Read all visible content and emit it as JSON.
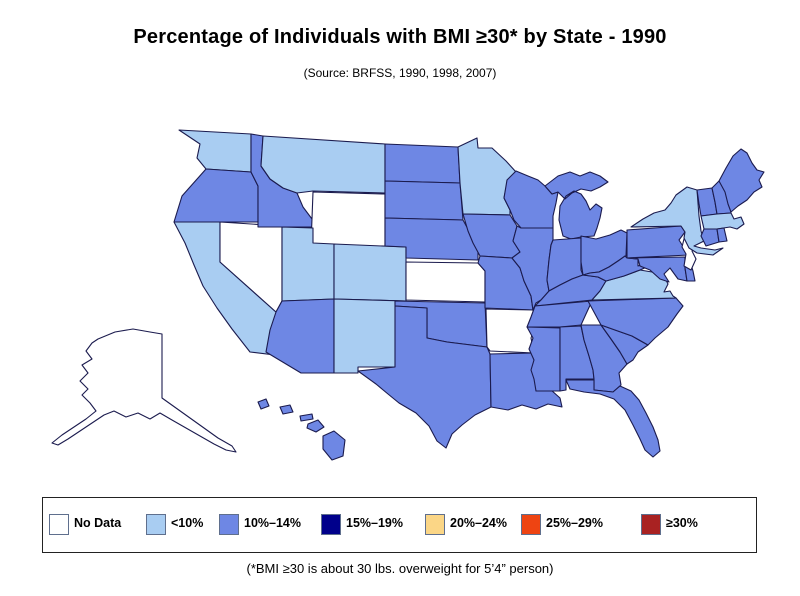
{
  "header": {
    "title": "Percentage of Individuals with BMI ≥30* by State - 1990",
    "subtitle": "(Source: BRFSS, 1990, 1998, 2007)"
  },
  "footnote": "(*BMI ≥30 is about 30 lbs. overweight for 5’4” person)",
  "legend": {
    "items": [
      {
        "label": "No Data",
        "color": "#ffffff"
      },
      {
        "label": "<10%",
        "color": "#a9cdf2"
      },
      {
        "label": "10%–14%",
        "color": "#6e87e4"
      },
      {
        "label": "15%–19%",
        "color": "#00008b"
      },
      {
        "label": "20%–24%",
        "color": "#fbd686"
      },
      {
        "label": "25%–29%",
        "color": "#ee4412"
      },
      {
        "label": "≥30%",
        "color": "#a92222"
      }
    ]
  },
  "chart_data": {
    "type": "choropleth-map",
    "title": "Percentage of Individuals with BMI ≥30* by State - 1990",
    "region": "United States",
    "year": 1990,
    "unit": "percent of individuals with BMI ≥30",
    "categories": [
      "No Data",
      "<10%",
      "10%–14%",
      "15%–19%",
      "20%–24%",
      "25%–29%",
      "≥30%"
    ],
    "states": {
      "WA": "<10%",
      "OR": "10%–14%",
      "CA": "<10%",
      "NV": "No Data",
      "ID": "10%–14%",
      "MT": "<10%",
      "WY": "No Data",
      "UT": "<10%",
      "CO": "<10%",
      "AZ": "10%–14%",
      "NM": "<10%",
      "ND": "10%–14%",
      "SD": "10%–14%",
      "NE": "10%–14%",
      "KS": "No Data",
      "OK": "10%–14%",
      "TX": "10%–14%",
      "MN": "<10%",
      "IA": "10%–14%",
      "MO": "10%–14%",
      "AR": "No Data",
      "LA": "10%–14%",
      "WI": "10%–14%",
      "IL": "10%–14%",
      "MS": "10%–14%",
      "MI": "10%–14%",
      "IN": "10%–14%",
      "OH": "10%–14%",
      "KY": "10%–14%",
      "TN": "10%–14%",
      "AL": "10%–14%",
      "GA": "10%–14%",
      "FL": "10%–14%",
      "SC": "10%–14%",
      "NC": "10%–14%",
      "VA": "<10%",
      "WV": "10%–14%",
      "PA": "10%–14%",
      "NY": "<10%",
      "MD": "10%–14%",
      "DE": "10%–14%",
      "NJ": "No Data",
      "CT": "10%–14%",
      "RI": "10%–14%",
      "MA": "<10%",
      "VT": "10%–14%",
      "NH": "10%–14%",
      "ME": "10%–14%",
      "AK": "No Data",
      "HI": "10%–14%"
    }
  }
}
